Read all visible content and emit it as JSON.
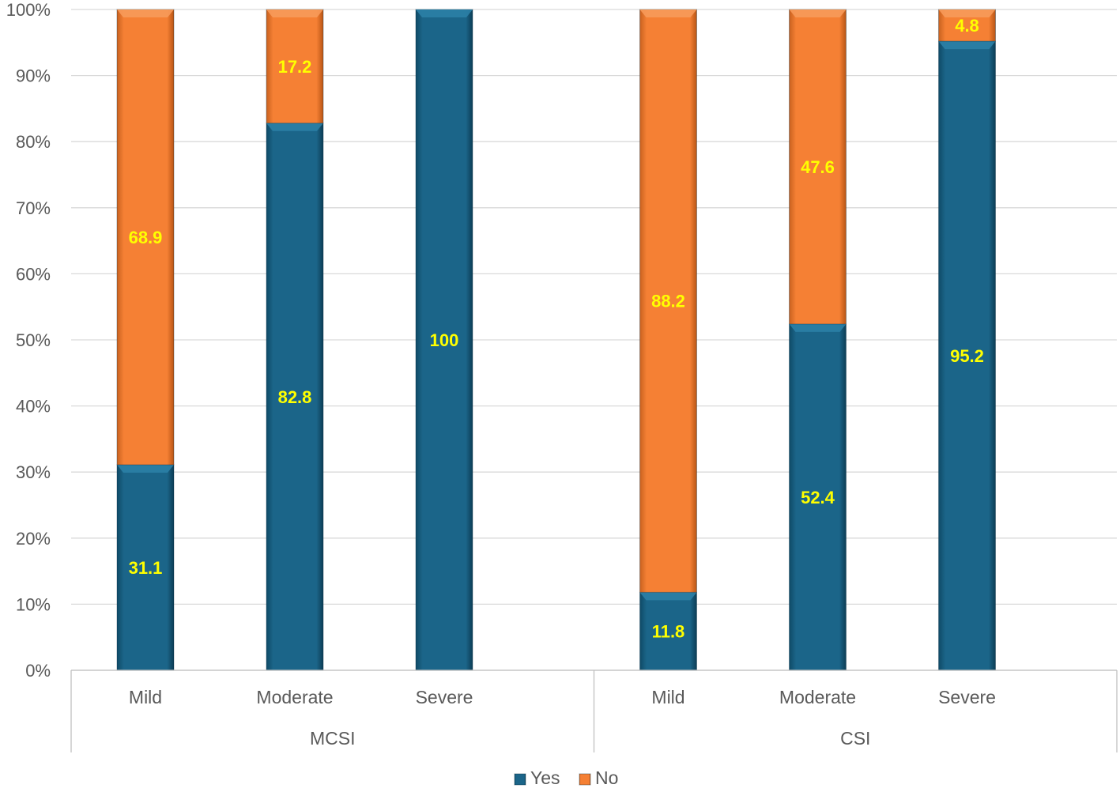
{
  "chart_data": {
    "type": "bar",
    "stacked": "100%",
    "groups": [
      {
        "label": "MCSI",
        "categories": [
          "Mild",
          "Moderate",
          "Severe"
        ]
      },
      {
        "label": "CSI",
        "categories": [
          "Mild",
          "Moderate",
          "Severe"
        ]
      }
    ],
    "series": [
      {
        "name": "Yes",
        "color": "#1b6589",
        "values": [
          31.1,
          82.8,
          100,
          11.8,
          52.4,
          95.2
        ]
      },
      {
        "name": "No",
        "color": "#f58034",
        "values": [
          68.9,
          17.2,
          0,
          88.2,
          47.6,
          4.8
        ]
      }
    ],
    "data_labels": [
      [
        "31.1",
        "82.8",
        "100",
        "11.8",
        "52.4",
        "95.2"
      ],
      [
        "68.9",
        "17.2",
        "",
        "88.2",
        "47.6",
        "4.8"
      ]
    ],
    "y_ticks": [
      "0%",
      "10%",
      "20%",
      "30%",
      "40%",
      "50%",
      "60%",
      "70%",
      "80%",
      "90%",
      "100%"
    ],
    "ylim": [
      0,
      100
    ],
    "grid": true,
    "legend": "bottom-center",
    "data_label_color": "#ffff00"
  }
}
